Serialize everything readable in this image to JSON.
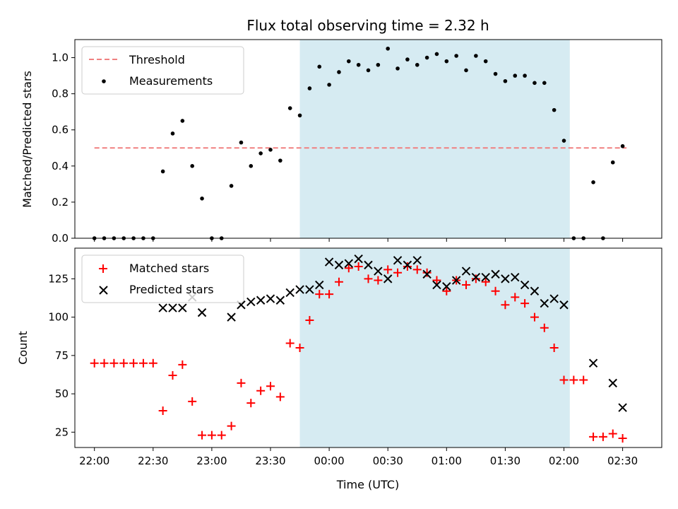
{
  "chart_data": {
    "title": "Flux total observing time = 2.32 h",
    "xlabel": "Time (UTC)",
    "x_ticks": [
      "22:00",
      "22:30",
      "23:00",
      "23:30",
      "00:00",
      "00:30",
      "01:00",
      "01:30",
      "02:00",
      "02:30"
    ],
    "xlim_minutes": [
      -10,
      290
    ],
    "shaded_span": {
      "start": "23:45",
      "end": "02:03",
      "color": "#add8e6"
    },
    "panels": [
      {
        "type": "scatter",
        "ylabel": "Matched/Predicted stars",
        "ylim": [
          0,
          1.1
        ],
        "y_ticks": [
          "0.0",
          "0.2",
          "0.4",
          "0.6",
          "0.8",
          "1.0"
        ],
        "legend_position": "top-left",
        "threshold": {
          "name": "Threshold",
          "value": 0.5,
          "x_start": "22:00",
          "x_end": "02:32",
          "color": "#f08080"
        },
        "series": [
          {
            "name": "Measurements",
            "marker": "dot",
            "color": "#000000",
            "points": [
              [
                "22:00",
                0.0
              ],
              [
                "22:05",
                0.0
              ],
              [
                "22:10",
                0.0
              ],
              [
                "22:15",
                0.0
              ],
              [
                "22:20",
                0.0
              ],
              [
                "22:25",
                0.0
              ],
              [
                "22:30",
                0.0
              ],
              [
                "22:35",
                0.37
              ],
              [
                "22:40",
                0.58
              ],
              [
                "22:45",
                0.65
              ],
              [
                "22:50",
                0.4
              ],
              [
                "22:55",
                0.22
              ],
              [
                "23:00",
                0.0
              ],
              [
                "23:05",
                0.0
              ],
              [
                "23:10",
                0.29
              ],
              [
                "23:15",
                0.53
              ],
              [
                "23:20",
                0.4
              ],
              [
                "23:25",
                0.47
              ],
              [
                "23:30",
                0.49
              ],
              [
                "23:35",
                0.43
              ],
              [
                "23:40",
                0.72
              ],
              [
                "23:45",
                0.68
              ],
              [
                "23:50",
                0.83
              ],
              [
                "23:55",
                0.95
              ],
              [
                "00:00",
                0.85
              ],
              [
                "00:05",
                0.92
              ],
              [
                "00:10",
                0.98
              ],
              [
                "00:15",
                0.96
              ],
              [
                "00:20",
                0.93
              ],
              [
                "00:25",
                0.96
              ],
              [
                "00:30",
                1.05
              ],
              [
                "00:35",
                0.94
              ],
              [
                "00:40",
                0.99
              ],
              [
                "00:45",
                0.96
              ],
              [
                "00:50",
                1.0
              ],
              [
                "00:55",
                1.02
              ],
              [
                "01:00",
                0.98
              ],
              [
                "01:05",
                1.01
              ],
              [
                "01:10",
                0.93
              ],
              [
                "01:15",
                1.01
              ],
              [
                "01:20",
                0.98
              ],
              [
                "01:25",
                0.91
              ],
              [
                "01:30",
                0.87
              ],
              [
                "01:35",
                0.9
              ],
              [
                "01:40",
                0.9
              ],
              [
                "01:45",
                0.86
              ],
              [
                "01:50",
                0.86
              ],
              [
                "01:55",
                0.71
              ],
              [
                "02:00",
                0.54
              ],
              [
                "02:05",
                0.0
              ],
              [
                "02:10",
                0.0
              ],
              [
                "02:15",
                0.31
              ],
              [
                "02:20",
                0.0
              ],
              [
                "02:25",
                0.42
              ],
              [
                "02:30",
                0.51
              ]
            ]
          }
        ]
      },
      {
        "type": "scatter",
        "ylabel": "Count",
        "ylim": [
          15,
          145
        ],
        "y_ticks": [
          "25",
          "50",
          "75",
          "100",
          "125"
        ],
        "legend_position": "top-left",
        "series": [
          {
            "name": "Matched stars",
            "marker": "plus",
            "color": "#ff0000",
            "points": [
              [
                "22:00",
                70
              ],
              [
                "22:05",
                70
              ],
              [
                "22:10",
                70
              ],
              [
                "22:15",
                70
              ],
              [
                "22:20",
                70
              ],
              [
                "22:25",
                70
              ],
              [
                "22:30",
                70
              ],
              [
                "22:35",
                39
              ],
              [
                "22:40",
                62
              ],
              [
                "22:45",
                69
              ],
              [
                "22:50",
                45
              ],
              [
                "22:55",
                23
              ],
              [
                "23:00",
                23
              ],
              [
                "23:05",
                23
              ],
              [
                "23:10",
                29
              ],
              [
                "23:15",
                57
              ],
              [
                "23:20",
                44
              ],
              [
                "23:25",
                52
              ],
              [
                "23:30",
                55
              ],
              [
                "23:35",
                48
              ],
              [
                "23:40",
                83
              ],
              [
                "23:45",
                80
              ],
              [
                "23:50",
                98
              ],
              [
                "23:55",
                115
              ],
              [
                "00:00",
                115
              ],
              [
                "00:05",
                123
              ],
              [
                "00:10",
                132
              ],
              [
                "00:15",
                133
              ],
              [
                "00:20",
                125
              ],
              [
                "00:25",
                124
              ],
              [
                "00:30",
                131
              ],
              [
                "00:35",
                129
              ],
              [
                "00:40",
                133
              ],
              [
                "00:45",
                131
              ],
              [
                "00:50",
                129
              ],
              [
                "00:55",
                124
              ],
              [
                "01:00",
                117
              ],
              [
                "01:05",
                124
              ],
              [
                "01:10",
                121
              ],
              [
                "01:15",
                125
              ],
              [
                "01:20",
                123
              ],
              [
                "01:25",
                117
              ],
              [
                "01:30",
                108
              ],
              [
                "01:35",
                113
              ],
              [
                "01:40",
                109
              ],
              [
                "01:45",
                100
              ],
              [
                "01:50",
                93
              ],
              [
                "01:55",
                80
              ],
              [
                "02:00",
                59
              ],
              [
                "02:05",
                59
              ],
              [
                "02:10",
                59
              ],
              [
                "02:15",
                22
              ],
              [
                "02:20",
                22
              ],
              [
                "02:25",
                24
              ],
              [
                "02:30",
                21
              ]
            ]
          },
          {
            "name": "Predicted stars",
            "marker": "x",
            "color": "#000000",
            "points": [
              [
                "22:35",
                106
              ],
              [
                "22:40",
                106
              ],
              [
                "22:45",
                106
              ],
              [
                "22:50",
                113
              ],
              [
                "22:55",
                103
              ],
              [
                "23:10",
                100
              ],
              [
                "23:15",
                108
              ],
              [
                "23:20",
                110
              ],
              [
                "23:25",
                111
              ],
              [
                "23:30",
                112
              ],
              [
                "23:35",
                111
              ],
              [
                "23:40",
                116
              ],
              [
                "23:45",
                118
              ],
              [
                "23:50",
                118
              ],
              [
                "23:55",
                121
              ],
              [
                "00:00",
                136
              ],
              [
                "00:05",
                134
              ],
              [
                "00:10",
                135
              ],
              [
                "00:15",
                138
              ],
              [
                "00:20",
                134
              ],
              [
                "00:25",
                130
              ],
              [
                "00:30",
                125
              ],
              [
                "00:35",
                137
              ],
              [
                "00:40",
                134
              ],
              [
                "00:45",
                137
              ],
              [
                "00:50",
                128
              ],
              [
                "00:55",
                121
              ],
              [
                "01:00",
                120
              ],
              [
                "01:05",
                124
              ],
              [
                "01:10",
                130
              ],
              [
                "01:15",
                126
              ],
              [
                "01:20",
                126
              ],
              [
                "01:25",
                128
              ],
              [
                "01:30",
                125
              ],
              [
                "01:35",
                126
              ],
              [
                "01:40",
                121
              ],
              [
                "01:45",
                117
              ],
              [
                "01:50",
                109
              ],
              [
                "01:55",
                112
              ],
              [
                "02:00",
                108
              ],
              [
                "02:15",
                70
              ],
              [
                "02:25",
                57
              ],
              [
                "02:30",
                41
              ]
            ]
          }
        ]
      }
    ]
  }
}
